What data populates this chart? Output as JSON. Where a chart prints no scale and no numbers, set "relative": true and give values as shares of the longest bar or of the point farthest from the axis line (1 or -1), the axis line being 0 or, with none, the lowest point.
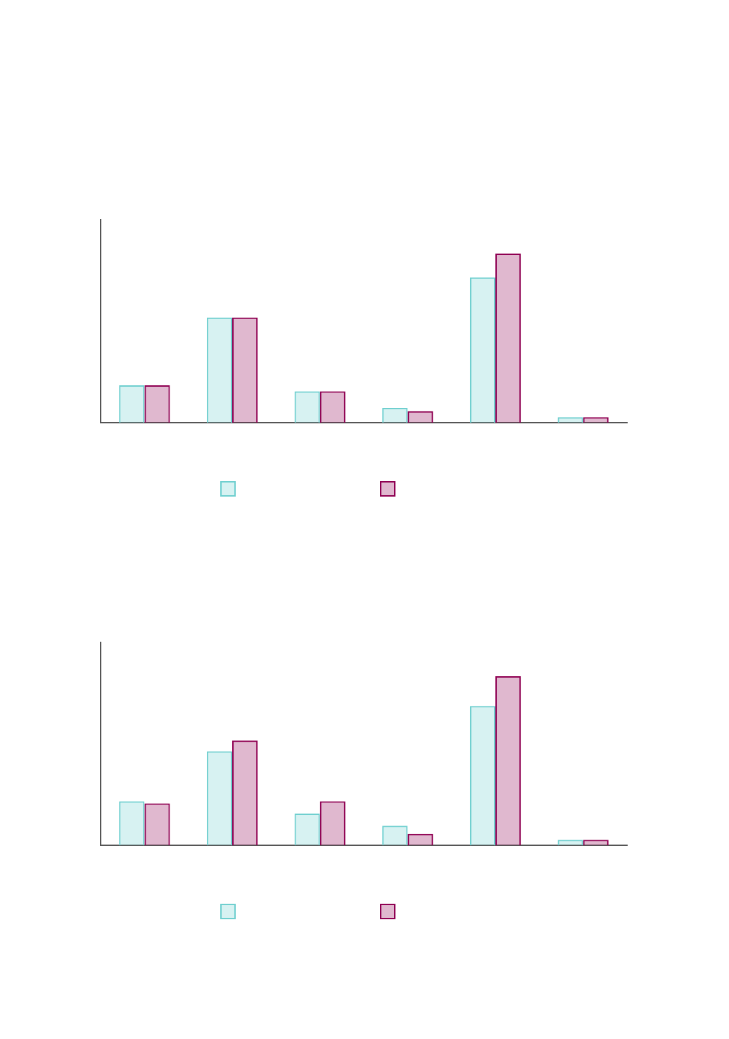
{
  "chart_data": [
    {
      "type": "bar",
      "relative": true,
      "categories": [
        null,
        null,
        null,
        null,
        null,
        null
      ],
      "series": [
        {
          "color": "#6fcfcf",
          "values": [
            0.221,
            0.622,
            0.185,
            0.088,
            0.859,
            0.032
          ]
        },
        {
          "color": "#8f0052",
          "values": [
            0.221,
            0.622,
            0.185,
            0.068,
            1,
            0.032
          ]
        }
      ]
    },
    {
      "type": "bar",
      "relative": true,
      "categories": [
        null,
        null,
        null,
        null,
        null,
        null
      ],
      "series": [
        {
          "color": "#6fcfcf",
          "values": [
            0.26,
            0.556,
            0.188,
            0.116,
            0.824,
            0.032
          ]
        },
        {
          "color": "#8f0052",
          "values": [
            0.248,
            0.62,
            0.26,
            0.068,
            1,
            0.032
          ]
        }
      ]
    }
  ]
}
